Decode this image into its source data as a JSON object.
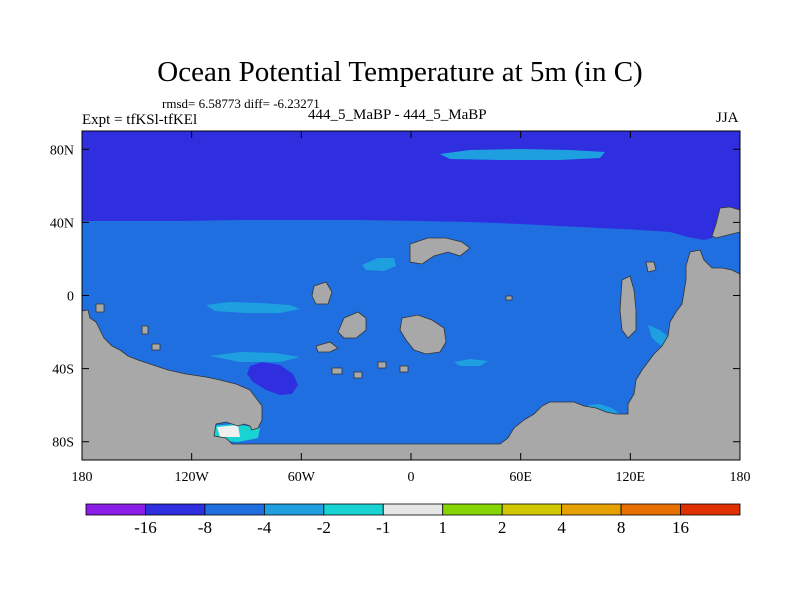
{
  "chart_data": {
    "type": "heatmap",
    "title": "Ocean Potential Temperature at 5m (in C)",
    "stats_text": "rmsd= 6.58773  diff= -6.23271",
    "left_label": "Expt = tfKSl-tfKEl",
    "center_label": "444_5_MaBP - 444_5_MaBP",
    "right_label": "JJA",
    "x_ticks": [
      {
        "value": -180,
        "label": "180"
      },
      {
        "value": -120,
        "label": "120W"
      },
      {
        "value": -60,
        "label": "60W"
      },
      {
        "value": 0,
        "label": "0"
      },
      {
        "value": 60,
        "label": "60E"
      },
      {
        "value": 120,
        "label": "120E"
      },
      {
        "value": 180,
        "label": "180"
      }
    ],
    "y_ticks": [
      {
        "value": 80,
        "label": "80N"
      },
      {
        "value": 40,
        "label": "40N"
      },
      {
        "value": 0,
        "label": "0"
      },
      {
        "value": -40,
        "label": "40S"
      },
      {
        "value": -80,
        "label": "80S"
      }
    ],
    "xlim": [
      -180,
      180
    ],
    "ylim": [
      -90,
      90
    ],
    "colorbar": {
      "bins": [
        {
          "color": "#8a1ee6"
        },
        {
          "color": "#2f2fe0"
        },
        {
          "color": "#1f6fe0"
        },
        {
          "color": "#1ea0e0"
        },
        {
          "color": "#19d2d2"
        },
        {
          "color": "#e6e6e6"
        },
        {
          "color": "#86d400"
        },
        {
          "color": "#d2c800"
        },
        {
          "color": "#e6a000"
        },
        {
          "color": "#e87000"
        },
        {
          "color": "#e03000"
        }
      ],
      "labels": [
        "-16",
        "-8",
        "-4",
        "-2",
        "-1",
        "1",
        "2",
        "4",
        "8",
        "16"
      ]
    },
    "land_color": "#a8a8a8",
    "colors": {
      "deep_blue": "#2f2fe0",
      "mid_blue": "#1f6fe0",
      "light_blue": "#1ea0e0",
      "cyan": "#19d2d2",
      "white": "#f0f0f0"
    }
  }
}
